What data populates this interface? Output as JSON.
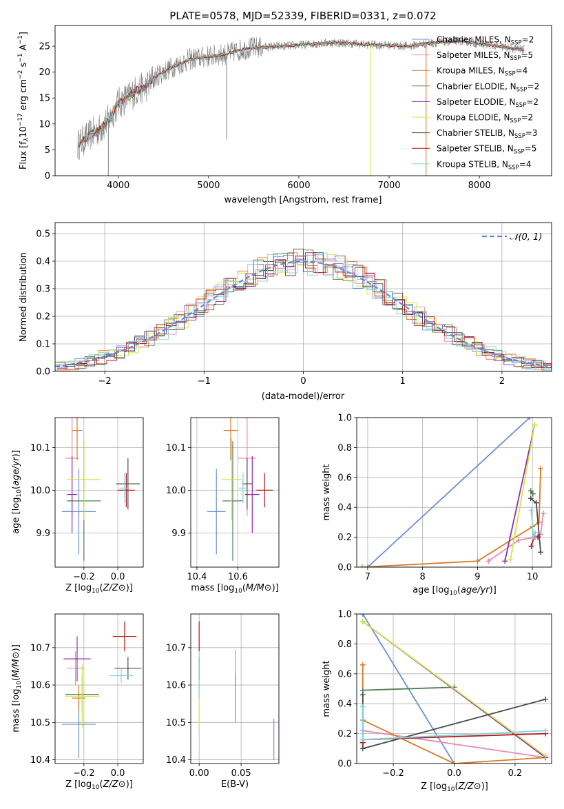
{
  "title": "PLATE=0578, MJD=52339, FIBERID=0331, z=0.072",
  "colors": {
    "Chabrier MILES": "#6b8fd6",
    "Salpeter MILES": "#e88ab3",
    "Kroupa MILES": "#d9781f",
    "Chabrier ELODIE": "#4f7f52",
    "Salpeter ELODIE": "#8e2fa8",
    "Kroupa ELODIE": "#cde642",
    "Chabrier STELIB": "#4a4a4a",
    "Salpeter STELIB": "#b81414",
    "Kroupa STELIB": "#7dd3e0",
    "grid": "#b0b0b0",
    "gaussian": "#5b8bd6",
    "spectrum_gray": "#7f7f7f"
  },
  "chart_data": [
    {
      "id": "spectrum",
      "type": "line",
      "title": "PLATE=0578, MJD=52339, FIBERID=0331, z=0.072",
      "xlabel": "wavelength [Angstrom, rest frame]",
      "ylabel_main": "Flux [f",
      "ylabel_sub_lambda": "λ",
      "ylabel_rest": "10",
      "ylabel_exp": "−17",
      "ylabel_units": " erg cm",
      "ylabel_units_exp": "−2",
      "ylabel_units2": " s",
      "ylabel_units2_exp": "−1",
      "ylabel_units3": " A",
      "ylabel_units3_exp": "−1",
      "ylabel_close": "]",
      "xlim": [
        3300,
        8800
      ],
      "ylim": [
        0,
        29
      ],
      "xticks": [
        4000,
        5000,
        6000,
        7000,
        8000
      ],
      "yticks": [
        0,
        5,
        10,
        15,
        20,
        25
      ],
      "grid": false,
      "legend_position": "top-right",
      "legend": [
        {
          "name": "Chabrier MILES",
          "nssp": "2"
        },
        {
          "name": "Salpeter MILES",
          "nssp": "5"
        },
        {
          "name": "Kroupa MILES",
          "nssp": "4"
        },
        {
          "name": "Chabrier ELODIE",
          "nssp": "2"
        },
        {
          "name": "Salpeter ELODIE",
          "nssp": "2"
        },
        {
          "name": "Kroupa ELODIE",
          "nssp": "2"
        },
        {
          "name": "Chabrier STELIB",
          "nssp": "3"
        },
        {
          "name": "Salpeter STELIB",
          "nssp": "5"
        },
        {
          "name": "Kroupa STELIB",
          "nssp": "4"
        }
      ],
      "legend_prefix": ", N",
      "legend_sub": "SSP",
      "legend_eq": "=",
      "continuum": [
        [
          3550,
          6
        ],
        [
          3700,
          8
        ],
        [
          3800,
          9
        ],
        [
          3900,
          11
        ],
        [
          4000,
          14
        ],
        [
          4100,
          15
        ],
        [
          4200,
          16.5
        ],
        [
          4300,
          17
        ],
        [
          4400,
          19
        ],
        [
          4600,
          21
        ],
        [
          4800,
          22.5
        ],
        [
          5000,
          23
        ],
        [
          5200,
          23.5
        ],
        [
          5400,
          24.5
        ],
        [
          5600,
          24.8
        ],
        [
          5800,
          25
        ],
        [
          6000,
          25.2
        ],
        [
          6200,
          25.5
        ],
        [
          6400,
          25.7
        ],
        [
          6600,
          25.5
        ],
        [
          6800,
          25.3
        ],
        [
          7000,
          25.2
        ],
        [
          7200,
          25
        ],
        [
          7400,
          25.5
        ],
        [
          7600,
          25.8
        ],
        [
          7800,
          26
        ],
        [
          8000,
          25.5
        ],
        [
          8200,
          25
        ],
        [
          8400,
          24.5
        ],
        [
          8500,
          24.3
        ]
      ],
      "dropouts": [
        [
          3890,
          0
        ],
        [
          5200,
          7
        ],
        [
          6790,
          0
        ],
        [
          7410,
          0
        ]
      ]
    },
    {
      "id": "residuals",
      "type": "line",
      "xlabel": "(data-model)/error",
      "ylabel": "Normed distribution",
      "xlim": [
        -2.5,
        2.5
      ],
      "ylim": [
        0,
        0.54
      ],
      "xticks": [
        -2,
        -1,
        0,
        1,
        2
      ],
      "xticklabels": [
        "−2",
        "−1",
        "0",
        "1",
        "2"
      ],
      "yticks": [
        0.0,
        0.1,
        0.2,
        0.3,
        0.4,
        0.5
      ],
      "yticklabels": [
        "0.0",
        "0.1",
        "0.2",
        "0.3",
        "0.4",
        "0.5"
      ],
      "grid": true,
      "legend_position": "top-right",
      "gaussian_label": "𝒩(0, 1)",
      "bin_width": 0.1
    },
    {
      "id": "age-vs-Z",
      "type": "scatter",
      "xlabel": "Z [log10(Z/Z⊙)]",
      "ylabel": "age  [log10(age/yr)]",
      "xlim": [
        -0.37,
        0.15
      ],
      "ylim": [
        9.82,
        10.17
      ],
      "xticks": [
        -0.2,
        0.0
      ],
      "xticklabels": [
        "−0.2",
        "0.0"
      ],
      "yticks": [
        9.9,
        10.0,
        10.1
      ],
      "yticklabels": [
        "9.9",
        "10.0",
        "10.1"
      ],
      "grid": true,
      "points": [
        {
          "model": "Chabrier MILES",
          "x": -0.23,
          "xerr": 0.1,
          "y": 9.95,
          "yerr": 0.1
        },
        {
          "model": "Salpeter MILES",
          "x": -0.27,
          "xerr": 0.04,
          "y": 10.075,
          "yerr": 0.135
        },
        {
          "model": "Kroupa MILES",
          "x": -0.24,
          "xerr": 0.03,
          "y": 10.14,
          "yerr": 0.07
        },
        {
          "model": "Chabrier ELODIE",
          "x": -0.2,
          "xerr": 0.1,
          "y": 9.975,
          "yerr": 0.14
        },
        {
          "model": "Salpeter ELODIE",
          "x": -0.27,
          "xerr": 0.03,
          "y": 9.99,
          "yerr": 0.09
        },
        {
          "model": "Kroupa ELODIE",
          "x": -0.2,
          "xerr": 0.1,
          "y": 10.025,
          "yerr": 0.095
        },
        {
          "model": "Chabrier STELIB",
          "x": 0.06,
          "xerr": 0.07,
          "y": 10.015,
          "yerr": 0.06
        },
        {
          "model": "Salpeter STELIB",
          "x": 0.05,
          "xerr": 0.05,
          "y": 10.0,
          "yerr": 0.04
        },
        {
          "model": "Kroupa STELIB",
          "x": 0.04,
          "xerr": 0.03,
          "y": 10.005,
          "yerr": 0.035
        }
      ]
    },
    {
      "id": "age-vs-mass",
      "type": "scatter",
      "xlabel": "mass [log10(M/M⊙)]",
      "xlim": [
        10.37,
        10.8
      ],
      "ylim": [
        9.82,
        10.17
      ],
      "xticks": [
        10.4,
        10.6
      ],
      "xticklabels": [
        "10.4",
        "10.6"
      ],
      "yticks": [
        9.9,
        10.0,
        10.1
      ],
      "yticklabels": [
        "9.9",
        "10.0",
        "10.1"
      ],
      "grid": true,
      "points": [
        {
          "model": "Chabrier MILES",
          "x": 10.495,
          "xerr": 0.045,
          "y": 9.95,
          "yerr": 0.1
        },
        {
          "model": "Salpeter MILES",
          "x": 10.645,
          "xerr": 0.045,
          "y": 10.075,
          "yerr": 0.135
        },
        {
          "model": "Kroupa MILES",
          "x": 10.565,
          "xerr": 0.035,
          "y": 10.14,
          "yerr": 0.07
        },
        {
          "model": "Chabrier ELODIE",
          "x": 10.575,
          "xerr": 0.05,
          "y": 9.975,
          "yerr": 0.14
        },
        {
          "model": "Salpeter ELODIE",
          "x": 10.67,
          "xerr": 0.035,
          "y": 9.99,
          "yerr": 0.09
        },
        {
          "model": "Kroupa ELODIE",
          "x": 10.57,
          "xerr": 0.05,
          "y": 10.025,
          "yerr": 0.095
        },
        {
          "model": "Chabrier STELIB",
          "x": 10.645,
          "xerr": 0.025,
          "y": 10.015,
          "yerr": 0.06
        },
        {
          "model": "Salpeter STELIB",
          "x": 10.73,
          "xerr": 0.04,
          "y": 10.0,
          "yerr": 0.04
        },
        {
          "model": "Kroupa STELIB",
          "x": 10.625,
          "xerr": 0.02,
          "y": 10.005,
          "yerr": 0.035
        }
      ]
    },
    {
      "id": "mass-weight-vs-age",
      "type": "line",
      "xlabel": "age  [log10(age/yr)]",
      "ylabel": "mass weight",
      "xlim": [
        6.8,
        10.35
      ],
      "ylim": [
        0,
        1
      ],
      "xticks": [
        7,
        8,
        9,
        10
      ],
      "xticklabels": [
        "7",
        "8",
        "9",
        "10"
      ],
      "yticks": [
        0,
        0.2,
        0.4,
        0.6,
        0.8,
        1.0
      ],
      "yticklabels": [
        "0.0",
        "0.2",
        "0.4",
        "0.6",
        "0.8",
        "1.0"
      ],
      "grid": true,
      "series": [
        {
          "model": "Chabrier MILES",
          "x": [
            7.0,
            9.95
          ],
          "y": [
            0.0,
            1.0
          ]
        },
        {
          "model": "Salpeter MILES",
          "x": [
            9.2,
            9.75,
            10.05,
            10.15,
            10.2
          ],
          "y": [
            0.04,
            0.18,
            0.2,
            0.22,
            0.36
          ]
        },
        {
          "model": "Kroupa MILES",
          "x": [
            6.9,
            9.0,
            10.0,
            10.12,
            10.15
          ],
          "y": [
            0.0,
            0.04,
            0.27,
            0.3,
            0.66
          ]
        },
        {
          "model": "Chabrier ELODIE",
          "x": [
            9.97,
            10.01
          ],
          "y": [
            0.51,
            0.49
          ]
        },
        {
          "model": "Salpeter ELODIE",
          "x": [
            9.5,
            10.04
          ],
          "y": [
            0.04,
            0.95
          ]
        },
        {
          "model": "Kroupa ELODIE",
          "x": [
            9.6,
            10.04
          ],
          "y": [
            0.05,
            0.95
          ]
        },
        {
          "model": "Chabrier STELIB",
          "x": [
            9.97,
            10.07,
            10.15
          ],
          "y": [
            0.46,
            0.43,
            0.1
          ]
        },
        {
          "model": "Salpeter STELIB",
          "x": [
            9.98,
            10.03,
            10.1
          ],
          "y": [
            0.14,
            0.2,
            0.2
          ]
        },
        {
          "model": "Kroupa STELIB",
          "x": [
            9.98,
            10.02,
            10.05
          ],
          "y": [
            0.38,
            0.2,
            0.23
          ]
        }
      ]
    },
    {
      "id": "mass-vs-Z",
      "type": "scatter",
      "xlabel": "Z [log10(Z/Z⊙)]",
      "ylabel": "mass [log10(M/M⊙)]",
      "xlim": [
        -0.37,
        0.15
      ],
      "ylim": [
        10.39,
        10.79
      ],
      "xticks": [
        -0.2,
        0.0
      ],
      "xticklabels": [
        "−0.2",
        "0.0"
      ],
      "yticks": [
        10.4,
        10.5,
        10.6,
        10.7
      ],
      "yticklabels": [
        "10.4",
        "10.5",
        "10.6",
        "10.7"
      ],
      "grid": true,
      "points": [
        {
          "model": "Chabrier MILES",
          "x": -0.23,
          "xerr": 0.1,
          "y": 10.495,
          "yerr": 0.09
        },
        {
          "model": "Salpeter MILES",
          "x": -0.25,
          "xerr": 0.05,
          "y": 10.645,
          "yerr": 0.045
        },
        {
          "model": "Kroupa MILES",
          "x": -0.23,
          "xerr": 0.04,
          "y": 10.565,
          "yerr": 0.035
        },
        {
          "model": "Chabrier ELODIE",
          "x": -0.21,
          "xerr": 0.1,
          "y": 10.575,
          "yerr": 0.05
        },
        {
          "model": "Salpeter ELODIE",
          "x": -0.24,
          "xerr": 0.08,
          "y": 10.67,
          "yerr": 0.06
        },
        {
          "model": "Kroupa ELODIE",
          "x": -0.21,
          "xerr": 0.1,
          "y": 10.57,
          "yerr": 0.085
        },
        {
          "model": "Chabrier STELIB",
          "x": 0.06,
          "xerr": 0.08,
          "y": 10.645,
          "yerr": 0.03
        },
        {
          "model": "Salpeter STELIB",
          "x": 0.04,
          "xerr": 0.07,
          "y": 10.73,
          "yerr": 0.04
        },
        {
          "model": "Kroupa STELIB",
          "x": 0.02,
          "xerr": 0.07,
          "y": 10.625,
          "yerr": 0.02
        }
      ]
    },
    {
      "id": "mass-vs-EBV",
      "type": "scatter",
      "xlabel": "E(B-V)",
      "xlim": [
        -0.01,
        0.095
      ],
      "ylim": [
        10.39,
        10.79
      ],
      "xticks": [
        0.0,
        0.05
      ],
      "xticklabels": [
        "0.00",
        "0.05"
      ],
      "yticks": [
        10.4,
        10.5,
        10.6,
        10.7
      ],
      "yticklabels": [
        "10.4",
        "10.5",
        "10.6",
        "10.7"
      ],
      "grid": true,
      "points": [
        {
          "model": "Chabrier MILES",
          "x": 0.089,
          "y": 10.455,
          "yerr": 0.055
        },
        {
          "model": "Salpeter MILES",
          "x": 0.043,
          "y": 10.645,
          "yerr": 0.05
        },
        {
          "model": "Kroupa MILES",
          "x": 0.043,
          "y": 10.565,
          "yerr": 0.065
        },
        {
          "model": "Kroupa ELODIE",
          "x": 0.0,
          "y": 10.57,
          "yerr": 0.085
        },
        {
          "model": "Chabrier STELIB",
          "x": 0.0,
          "y": 10.645,
          "yerr": 0.03
        },
        {
          "model": "Salpeter STELIB",
          "x": 0.0,
          "y": 10.73,
          "yerr": 0.04
        },
        {
          "model": "Kroupa STELIB",
          "x": 0.0,
          "y": 10.625,
          "yerr": 0.06
        }
      ]
    },
    {
      "id": "mass-weight-vs-Z",
      "type": "line",
      "xlabel": "Z [log10(Z/Z⊙)]",
      "ylabel": "mass weight",
      "xlim": [
        -0.32,
        0.32
      ],
      "ylim": [
        0,
        1
      ],
      "xticks": [
        -0.2,
        0.0,
        0.2
      ],
      "xticklabels": [
        "−0.2",
        "0.0",
        "0.2"
      ],
      "yticks": [
        0,
        0.2,
        0.4,
        0.6,
        0.8,
        1.0
      ],
      "yticklabels": [
        "0.0",
        "0.2",
        "0.4",
        "0.6",
        "0.8",
        "1.0"
      ],
      "grid": true,
      "series": [
        {
          "model": "Chabrier MILES",
          "x": [
            -0.3,
            0.0
          ],
          "y": [
            1.0,
            0.0
          ]
        },
        {
          "model": "Salpeter MILES",
          "x": [
            -0.3,
            0.3
          ],
          "y": [
            0.22,
            0.04
          ]
        },
        {
          "model": "Kroupa MILES",
          "x": [
            -0.3,
            -0.3,
            0.0,
            0.3
          ],
          "y": [
            0.66,
            0.29,
            0.0,
            0.04
          ]
        },
        {
          "model": "Chabrier ELODIE",
          "x": [
            -0.3,
            0.0
          ],
          "y": [
            0.49,
            0.51
          ]
        },
        {
          "model": "Salpeter ELODIE",
          "x": [
            -0.3,
            0.3
          ],
          "y": [
            0.95,
            0.04
          ]
        },
        {
          "model": "Kroupa ELODIE",
          "x": [
            -0.3,
            0.3
          ],
          "y": [
            0.95,
            0.05
          ]
        },
        {
          "model": "Chabrier STELIB",
          "x": [
            -0.3,
            -0.3,
            0.3
          ],
          "y": [
            0.46,
            0.1,
            0.43
          ]
        },
        {
          "model": "Salpeter STELIB",
          "x": [
            -0.3,
            -0.3,
            0.3
          ],
          "y": [
            0.14,
            0.16,
            0.2
          ]
        },
        {
          "model": "Kroupa STELIB",
          "x": [
            -0.3,
            -0.3,
            0.3
          ],
          "y": [
            0.38,
            0.16,
            0.22
          ]
        }
      ]
    }
  ]
}
